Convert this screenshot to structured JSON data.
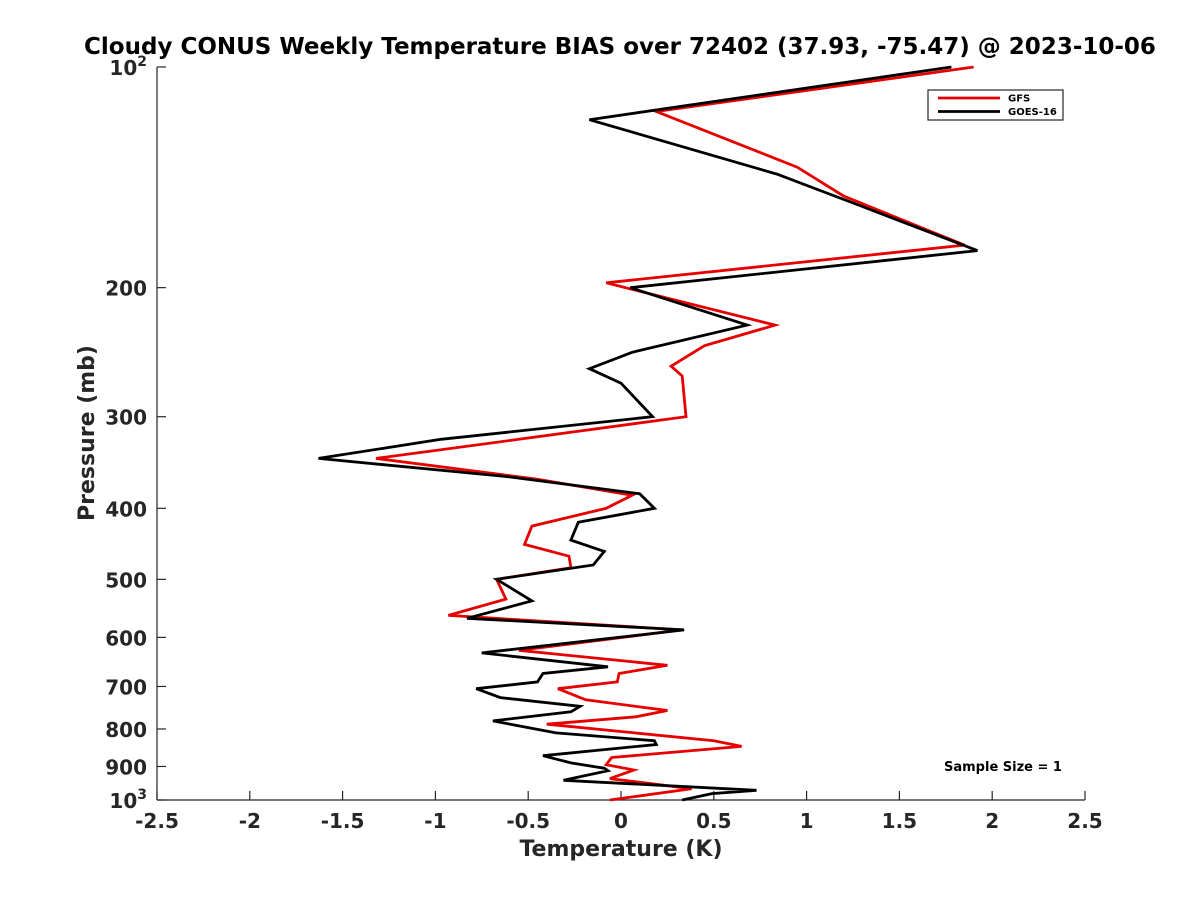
{
  "chart_data": {
    "type": "line",
    "title": "Cloudy CONUS Weekly Temperature BIAS over 72402 (37.93, -75.47) @ 2023-10-06",
    "xlabel": "Temperature (K)",
    "ylabel": "Pressure (mb)",
    "xlim": [
      -2.5,
      2.5
    ],
    "ylim": [
      1000,
      100
    ],
    "yscale": "log",
    "grid": false,
    "legend_position": "top-right",
    "x_ticks": [
      "-2.5",
      "-2",
      "-1.5",
      "-1",
      "-0.5",
      "0",
      "0.5",
      "1",
      "1.5",
      "2",
      "2.5"
    ],
    "y_ticks": [
      {
        "value": 100,
        "base": "10",
        "exp": "2"
      },
      {
        "value": 200,
        "label": "200"
      },
      {
        "value": 300,
        "label": "300"
      },
      {
        "value": 400,
        "label": "400"
      },
      {
        "value": 500,
        "label": "500"
      },
      {
        "value": 600,
        "label": "600"
      },
      {
        "value": 700,
        "label": "700"
      },
      {
        "value": 800,
        "label": "800"
      },
      {
        "value": 900,
        "label": "900"
      },
      {
        "value": 1000,
        "base": "10",
        "exp": "3"
      }
    ],
    "annotation": "Sample Size = 1",
    "series": [
      {
        "name": "GFS",
        "color": "#e60000",
        "points": [
          [
            1.9,
            100
          ],
          [
            0.19,
            115
          ],
          [
            0.95,
            137
          ],
          [
            1.2,
            150
          ],
          [
            1.85,
            175
          ],
          [
            -0.08,
            197
          ],
          [
            0.83,
            225
          ],
          [
            0.45,
            240
          ],
          [
            0.27,
            256
          ],
          [
            0.33,
            264
          ],
          [
            0.35,
            300
          ],
          [
            -0.55,
            322
          ],
          [
            -1.32,
            342
          ],
          [
            -0.45,
            365
          ],
          [
            0.06,
            384
          ],
          [
            -0.08,
            400
          ],
          [
            -0.48,
            423
          ],
          [
            -0.52,
            448
          ],
          [
            -0.28,
            465
          ],
          [
            -0.27,
            482
          ],
          [
            -0.67,
            500
          ],
          [
            -0.62,
            532
          ],
          [
            -0.93,
            560
          ],
          [
            0.33,
            586
          ],
          [
            -0.55,
            625
          ],
          [
            0.25,
            655
          ],
          [
            -0.01,
            672
          ],
          [
            -0.02,
            690
          ],
          [
            -0.34,
            705
          ],
          [
            -0.19,
            730
          ],
          [
            0.25,
            755
          ],
          [
            0.08,
            770
          ],
          [
            -0.4,
            788
          ],
          [
            0.5,
            830
          ],
          [
            0.65,
            845
          ],
          [
            -0.05,
            875
          ],
          [
            -0.08,
            895
          ],
          [
            0.07,
            910
          ],
          [
            -0.06,
            935
          ],
          [
            0.38,
            965
          ],
          [
            -0.06,
            1000
          ]
        ]
      },
      {
        "name": "GOES-16",
        "color": "#000000",
        "points": [
          [
            1.78,
            100
          ],
          [
            -0.17,
            118
          ],
          [
            0.84,
            140
          ],
          [
            1.3,
            155
          ],
          [
            1.92,
            178
          ],
          [
            0.05,
            200
          ],
          [
            0.68,
            225
          ],
          [
            0.06,
            245
          ],
          [
            -0.17,
            258
          ],
          [
            0.0,
            270
          ],
          [
            0.17,
            300
          ],
          [
            -0.97,
            322
          ],
          [
            -1.63,
            342
          ],
          [
            -0.62,
            362
          ],
          [
            0.1,
            382
          ],
          [
            0.18,
            400
          ],
          [
            -0.23,
            418
          ],
          [
            -0.27,
            442
          ],
          [
            -0.09,
            458
          ],
          [
            -0.15,
            478
          ],
          [
            -0.67,
            500
          ],
          [
            -0.48,
            535
          ],
          [
            -0.83,
            565
          ],
          [
            0.34,
            586
          ],
          [
            -0.75,
            630
          ],
          [
            -0.07,
            658
          ],
          [
            -0.42,
            672
          ],
          [
            -0.45,
            690
          ],
          [
            -0.78,
            705
          ],
          [
            -0.65,
            725
          ],
          [
            -0.22,
            745
          ],
          [
            -0.27,
            758
          ],
          [
            -0.69,
            780
          ],
          [
            -0.35,
            810
          ],
          [
            0.18,
            830
          ],
          [
            0.19,
            840
          ],
          [
            -0.42,
            870
          ],
          [
            -0.27,
            890
          ],
          [
            -0.09,
            905
          ],
          [
            -0.07,
            912
          ],
          [
            -0.31,
            940
          ],
          [
            0.73,
            970
          ],
          [
            0.49,
            980
          ],
          [
            0.33,
            1000
          ]
        ]
      }
    ]
  }
}
